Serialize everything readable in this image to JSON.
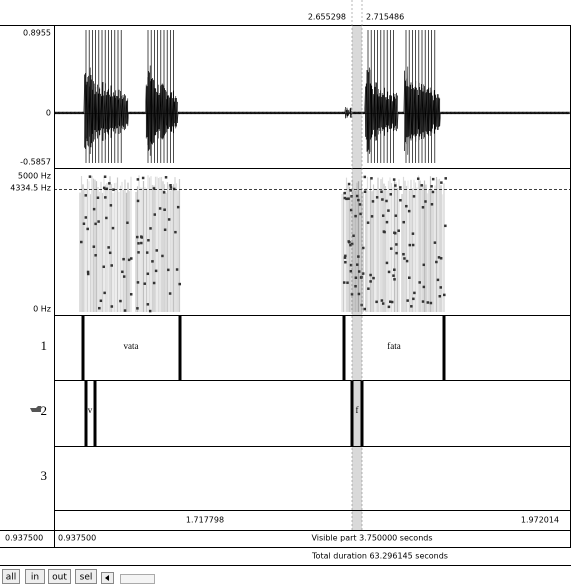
{
  "selection": {
    "start": "2.655298",
    "end": "2.715486"
  },
  "waveform": {
    "max": "0.8955",
    "zero": "0",
    "min": "-0.5857"
  },
  "spectrogram": {
    "top": "5000 Hz",
    "cursor": "4334.5 Hz",
    "bottom": "0 Hz"
  },
  "tiers": [
    {
      "number": "1",
      "intervals": [
        "vata",
        "fata"
      ]
    },
    {
      "number": "2",
      "intervals": [
        "v",
        "f"
      ]
    },
    {
      "number": "3"
    }
  ],
  "time_axis": {
    "labels": [
      "1.717798",
      "1.972014"
    ]
  },
  "status": {
    "start_left": "0.937500",
    "start_visible": "0.937500",
    "visible_part": "Visible part 3.750000 seconds",
    "total_duration": "Total duration 63.296145 seconds"
  },
  "buttons": [
    "all",
    "in",
    "out",
    "sel"
  ]
}
